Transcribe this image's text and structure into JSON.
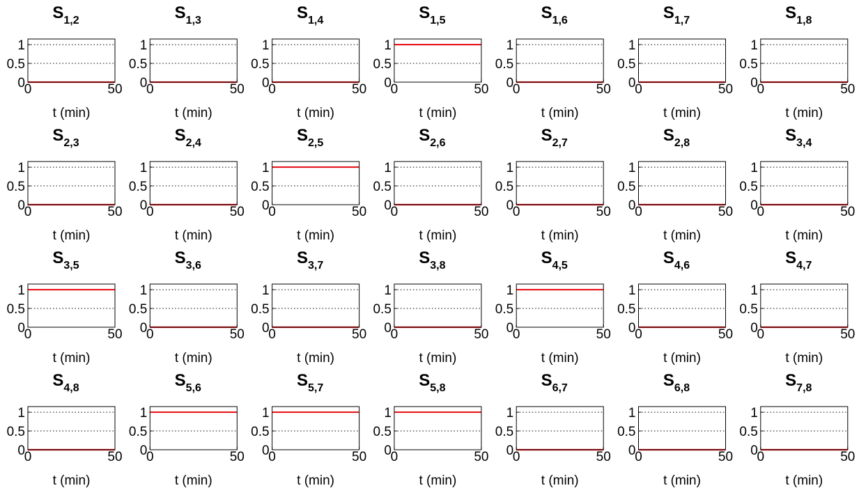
{
  "chart_data": [
    {
      "type": "line",
      "title": "S",
      "subscript": "1,2",
      "x": [
        0,
        50
      ],
      "values": [
        0,
        0
      ],
      "color": "#e8141c",
      "xlim": [
        0,
        50
      ],
      "xticks": [
        0,
        50
      ],
      "ylim": [
        0,
        1.15
      ],
      "yticks": [
        0,
        0.5,
        1
      ],
      "xlabel": "t (min)",
      "grid": true
    },
    {
      "type": "line",
      "title": "S",
      "subscript": "1,3",
      "x": [
        0,
        50
      ],
      "values": [
        0,
        0
      ],
      "color": "#e8141c",
      "xlim": [
        0,
        50
      ],
      "xticks": [
        0,
        50
      ],
      "ylim": [
        0,
        1.15
      ],
      "yticks": [
        0,
        0.5,
        1
      ],
      "xlabel": "t (min)",
      "grid": true
    },
    {
      "type": "line",
      "title": "S",
      "subscript": "1,4",
      "x": [
        0,
        50
      ],
      "values": [
        0,
        0
      ],
      "color": "#e8141c",
      "xlim": [
        0,
        50
      ],
      "xticks": [
        0,
        50
      ],
      "ylim": [
        0,
        1.15
      ],
      "yticks": [
        0,
        0.5,
        1
      ],
      "xlabel": "t (min)",
      "grid": true
    },
    {
      "type": "line",
      "title": "S",
      "subscript": "1,5",
      "x": [
        0,
        50
      ],
      "values": [
        1,
        1
      ],
      "color": "#e8141c",
      "xlim": [
        0,
        50
      ],
      "xticks": [
        0,
        50
      ],
      "ylim": [
        0,
        1.15
      ],
      "yticks": [
        0,
        0.5,
        1
      ],
      "xlabel": "t (min)",
      "grid": true
    },
    {
      "type": "line",
      "title": "S",
      "subscript": "1,6",
      "x": [
        0,
        50
      ],
      "values": [
        0,
        0
      ],
      "color": "#e8141c",
      "xlim": [
        0,
        50
      ],
      "xticks": [
        0,
        50
      ],
      "ylim": [
        0,
        1.15
      ],
      "yticks": [
        0,
        0.5,
        1
      ],
      "xlabel": "t (min)",
      "grid": true
    },
    {
      "type": "line",
      "title": "S",
      "subscript": "1,7",
      "x": [
        0,
        50
      ],
      "values": [
        0,
        0
      ],
      "color": "#e8141c",
      "xlim": [
        0,
        50
      ],
      "xticks": [
        0,
        50
      ],
      "ylim": [
        0,
        1.15
      ],
      "yticks": [
        0,
        0.5,
        1
      ],
      "xlabel": "t (min)",
      "grid": true
    },
    {
      "type": "line",
      "title": "S",
      "subscript": "1,8",
      "x": [
        0,
        50
      ],
      "values": [
        0,
        0
      ],
      "color": "#e8141c",
      "xlim": [
        0,
        50
      ],
      "xticks": [
        0,
        50
      ],
      "ylim": [
        0,
        1.15
      ],
      "yticks": [
        0,
        0.5,
        1
      ],
      "xlabel": "t (min)",
      "grid": true
    },
    {
      "type": "line",
      "title": "S",
      "subscript": "2,3",
      "x": [
        0,
        50
      ],
      "values": [
        0,
        0
      ],
      "color": "#e8141c",
      "xlim": [
        0,
        50
      ],
      "xticks": [
        0,
        50
      ],
      "ylim": [
        0,
        1.15
      ],
      "yticks": [
        0,
        0.5,
        1
      ],
      "xlabel": "t (min)",
      "grid": true
    },
    {
      "type": "line",
      "title": "S",
      "subscript": "2,4",
      "x": [
        0,
        50
      ],
      "values": [
        0,
        0
      ],
      "color": "#e8141c",
      "xlim": [
        0,
        50
      ],
      "xticks": [
        0,
        50
      ],
      "ylim": [
        0,
        1.15
      ],
      "yticks": [
        0,
        0.5,
        1
      ],
      "xlabel": "t (min)",
      "grid": true
    },
    {
      "type": "line",
      "title": "S",
      "subscript": "2,5",
      "x": [
        0,
        50
      ],
      "values": [
        1,
        1
      ],
      "color": "#e8141c",
      "xlim": [
        0,
        50
      ],
      "xticks": [
        0,
        50
      ],
      "ylim": [
        0,
        1.15
      ],
      "yticks": [
        0,
        0.5,
        1
      ],
      "xlabel": "t (min)",
      "grid": true
    },
    {
      "type": "line",
      "title": "S",
      "subscript": "2,6",
      "x": [
        0,
        50
      ],
      "values": [
        0,
        0
      ],
      "color": "#e8141c",
      "xlim": [
        0,
        50
      ],
      "xticks": [
        0,
        50
      ],
      "ylim": [
        0,
        1.15
      ],
      "yticks": [
        0,
        0.5,
        1
      ],
      "xlabel": "t (min)",
      "grid": true
    },
    {
      "type": "line",
      "title": "S",
      "subscript": "2,7",
      "x": [
        0,
        50
      ],
      "values": [
        0,
        0
      ],
      "color": "#e8141c",
      "xlim": [
        0,
        50
      ],
      "xticks": [
        0,
        50
      ],
      "ylim": [
        0,
        1.15
      ],
      "yticks": [
        0,
        0.5,
        1
      ],
      "xlabel": "t (min)",
      "grid": true
    },
    {
      "type": "line",
      "title": "S",
      "subscript": "2,8",
      "x": [
        0,
        50
      ],
      "values": [
        0,
        0
      ],
      "color": "#e8141c",
      "xlim": [
        0,
        50
      ],
      "xticks": [
        0,
        50
      ],
      "ylim": [
        0,
        1.15
      ],
      "yticks": [
        0,
        0.5,
        1
      ],
      "xlabel": "t (min)",
      "grid": true
    },
    {
      "type": "line",
      "title": "S",
      "subscript": "3,4",
      "x": [
        0,
        50
      ],
      "values": [
        0,
        0
      ],
      "color": "#e8141c",
      "xlim": [
        0,
        50
      ],
      "xticks": [
        0,
        50
      ],
      "ylim": [
        0,
        1.15
      ],
      "yticks": [
        0,
        0.5,
        1
      ],
      "xlabel": "t (min)",
      "grid": true
    },
    {
      "type": "line",
      "title": "S",
      "subscript": "3,5",
      "x": [
        0,
        50
      ],
      "values": [
        1,
        1
      ],
      "color": "#e8141c",
      "xlim": [
        0,
        50
      ],
      "xticks": [
        0,
        50
      ],
      "ylim": [
        0,
        1.15
      ],
      "yticks": [
        0,
        0.5,
        1
      ],
      "xlabel": "t (min)",
      "grid": true
    },
    {
      "type": "line",
      "title": "S",
      "subscript": "3,6",
      "x": [
        0,
        50
      ],
      "values": [
        0,
        0
      ],
      "color": "#e8141c",
      "xlim": [
        0,
        50
      ],
      "xticks": [
        0,
        50
      ],
      "ylim": [
        0,
        1.15
      ],
      "yticks": [
        0,
        0.5,
        1
      ],
      "xlabel": "t (min)",
      "grid": true
    },
    {
      "type": "line",
      "title": "S",
      "subscript": "3,7",
      "x": [
        0,
        50
      ],
      "values": [
        0,
        0
      ],
      "color": "#e8141c",
      "xlim": [
        0,
        50
      ],
      "xticks": [
        0,
        50
      ],
      "ylim": [
        0,
        1.15
      ],
      "yticks": [
        0,
        0.5,
        1
      ],
      "xlabel": "t (min)",
      "grid": true
    },
    {
      "type": "line",
      "title": "S",
      "subscript": "3,8",
      "x": [
        0,
        50
      ],
      "values": [
        0,
        0
      ],
      "color": "#e8141c",
      "xlim": [
        0,
        50
      ],
      "xticks": [
        0,
        50
      ],
      "ylim": [
        0,
        1.15
      ],
      "yticks": [
        0,
        0.5,
        1
      ],
      "xlabel": "t (min)",
      "grid": true
    },
    {
      "type": "line",
      "title": "S",
      "subscript": "4,5",
      "x": [
        0,
        50
      ],
      "values": [
        1,
        1
      ],
      "color": "#e8141c",
      "xlim": [
        0,
        50
      ],
      "xticks": [
        0,
        50
      ],
      "ylim": [
        0,
        1.15
      ],
      "yticks": [
        0,
        0.5,
        1
      ],
      "xlabel": "t (min)",
      "grid": true
    },
    {
      "type": "line",
      "title": "S",
      "subscript": "4,6",
      "x": [
        0,
        50
      ],
      "values": [
        0,
        0
      ],
      "color": "#e8141c",
      "xlim": [
        0,
        50
      ],
      "xticks": [
        0,
        50
      ],
      "ylim": [
        0,
        1.15
      ],
      "yticks": [
        0,
        0.5,
        1
      ],
      "xlabel": "t (min)",
      "grid": true
    },
    {
      "type": "line",
      "title": "S",
      "subscript": "4,7",
      "x": [
        0,
        50
      ],
      "values": [
        0,
        0
      ],
      "color": "#e8141c",
      "xlim": [
        0,
        50
      ],
      "xticks": [
        0,
        50
      ],
      "ylim": [
        0,
        1.15
      ],
      "yticks": [
        0,
        0.5,
        1
      ],
      "xlabel": "t (min)",
      "grid": true
    },
    {
      "type": "line",
      "title": "S",
      "subscript": "4,8",
      "x": [
        0,
        50
      ],
      "values": [
        0,
        0
      ],
      "color": "#e8141c",
      "xlim": [
        0,
        50
      ],
      "xticks": [
        0,
        50
      ],
      "ylim": [
        0,
        1.15
      ],
      "yticks": [
        0,
        0.5,
        1
      ],
      "xlabel": "t (min)",
      "grid": true
    },
    {
      "type": "line",
      "title": "S",
      "subscript": "5,6",
      "x": [
        0,
        50
      ],
      "values": [
        1,
        1
      ],
      "color": "#e8141c",
      "xlim": [
        0,
        50
      ],
      "xticks": [
        0,
        50
      ],
      "ylim": [
        0,
        1.15
      ],
      "yticks": [
        0,
        0.5,
        1
      ],
      "xlabel": "t (min)",
      "grid": true
    },
    {
      "type": "line",
      "title": "S",
      "subscript": "5,7",
      "x": [
        0,
        50
      ],
      "values": [
        1,
        1
      ],
      "color": "#e8141c",
      "xlim": [
        0,
        50
      ],
      "xticks": [
        0,
        50
      ],
      "ylim": [
        0,
        1.15
      ],
      "yticks": [
        0,
        0.5,
        1
      ],
      "xlabel": "t (min)",
      "grid": true
    },
    {
      "type": "line",
      "title": "S",
      "subscript": "5,8",
      "x": [
        0,
        50
      ],
      "values": [
        1,
        1
      ],
      "color": "#e8141c",
      "xlim": [
        0,
        50
      ],
      "xticks": [
        0,
        50
      ],
      "ylim": [
        0,
        1.15
      ],
      "yticks": [
        0,
        0.5,
        1
      ],
      "xlabel": "t (min)",
      "grid": true
    },
    {
      "type": "line",
      "title": "S",
      "subscript": "6,7",
      "x": [
        0,
        50
      ],
      "values": [
        0,
        0
      ],
      "color": "#e8141c",
      "xlim": [
        0,
        50
      ],
      "xticks": [
        0,
        50
      ],
      "ylim": [
        0,
        1.15
      ],
      "yticks": [
        0,
        0.5,
        1
      ],
      "xlabel": "t (min)",
      "grid": true
    },
    {
      "type": "line",
      "title": "S",
      "subscript": "6,8",
      "x": [
        0,
        50
      ],
      "values": [
        0,
        0
      ],
      "color": "#e8141c",
      "xlim": [
        0,
        50
      ],
      "xticks": [
        0,
        50
      ],
      "ylim": [
        0,
        1.15
      ],
      "yticks": [
        0,
        0.5,
        1
      ],
      "xlabel": "t (min)",
      "grid": true
    },
    {
      "type": "line",
      "title": "S",
      "subscript": "7,8",
      "x": [
        0,
        50
      ],
      "values": [
        0,
        0
      ],
      "color": "#e8141c",
      "xlim": [
        0,
        50
      ],
      "xticks": [
        0,
        50
      ],
      "ylim": [
        0,
        1.15
      ],
      "yticks": [
        0,
        0.5,
        1
      ],
      "xlabel": "t (min)",
      "grid": true
    }
  ]
}
